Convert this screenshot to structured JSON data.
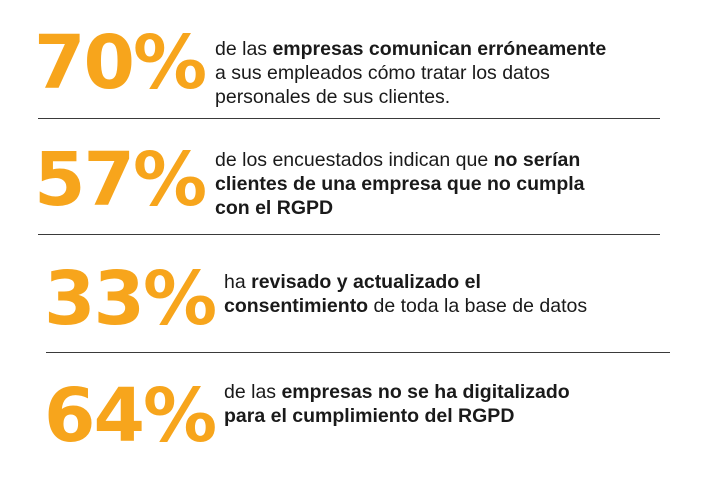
{
  "colors": {
    "accent": "#F7A51C",
    "text": "#1A1A1A",
    "divider": "#3A3A3A"
  },
  "stats": [
    {
      "value": "70%",
      "lines": [
        [
          {
            "text": "de las ",
            "bold": false
          },
          {
            "text": "empresas comunican erróneamente",
            "bold": true
          }
        ],
        [
          {
            "text": "a sus empleados cómo tratar los datos",
            "bold": false
          }
        ],
        [
          {
            "text": "personales de sus clientes.",
            "bold": false
          }
        ]
      ]
    },
    {
      "value": "57%",
      "lines": [
        [
          {
            "text": "de los encuestados indican que ",
            "bold": false
          },
          {
            "text": "no serían",
            "bold": true
          }
        ],
        [
          {
            "text": "clientes de una empresa que no cumpla",
            "bold": true
          }
        ],
        [
          {
            "text": "con el RGPD",
            "bold": true
          }
        ]
      ]
    },
    {
      "value": "33%",
      "lines": [
        [
          {
            "text": "ha ",
            "bold": false
          },
          {
            "text": "revisado y actualizado el",
            "bold": true
          }
        ],
        [
          {
            "text": "consentimiento",
            "bold": true
          },
          {
            "text": " de toda la base de datos",
            "bold": false
          }
        ]
      ]
    },
    {
      "value": "64%",
      "lines": [
        [
          {
            "text": "de las ",
            "bold": false
          },
          {
            "text": "empresas no se ha digitalizado",
            "bold": true
          }
        ],
        [
          {
            "text": "para el cumplimiento del RGPD",
            "bold": true
          }
        ]
      ]
    }
  ]
}
